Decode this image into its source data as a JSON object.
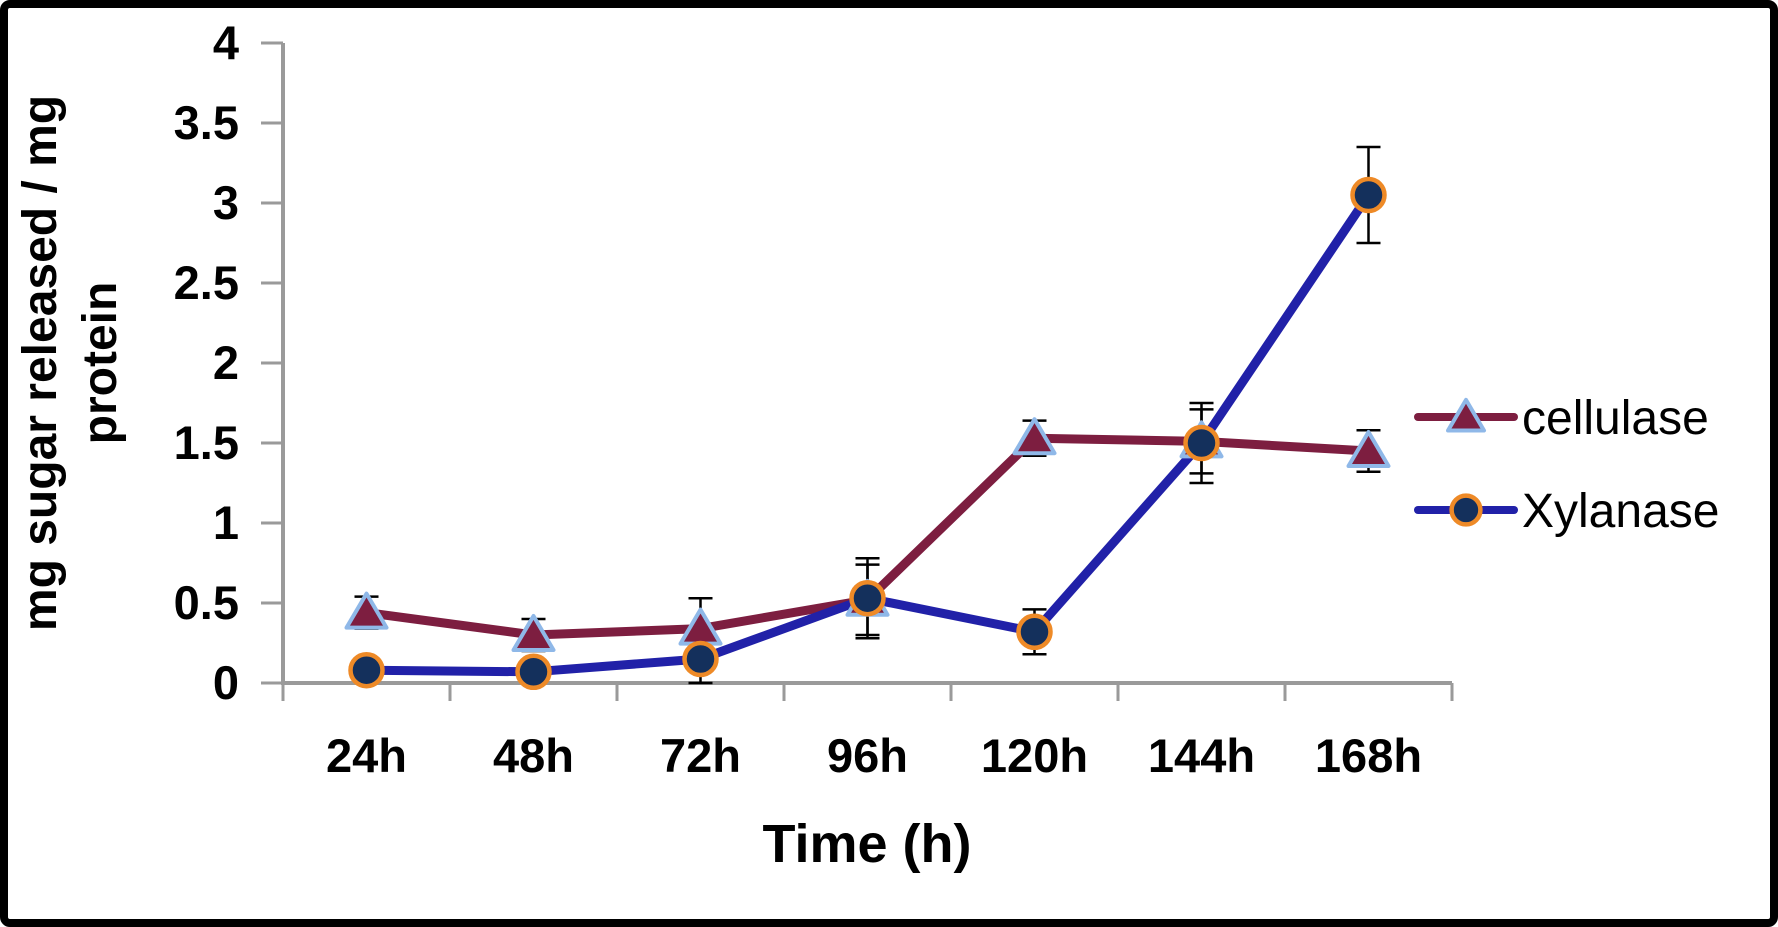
{
  "frame": {
    "background_color": "#ffffff",
    "border_color": "#000000"
  },
  "chart_data": {
    "type": "line",
    "title": "",
    "xlabel": "Time (h)",
    "ylabel": "mg sugar released / mg protein",
    "ylabel_lines": [
      "mg sugar released / mg",
      "protein"
    ],
    "categories": [
      "24h",
      "48h",
      "72h",
      "96h",
      "120h",
      "144h",
      "168h"
    ],
    "ylim": [
      0,
      4
    ],
    "y_ticks": [
      0,
      0.5,
      1,
      1.5,
      2,
      2.5,
      3,
      3.5,
      4
    ],
    "y_tick_labels": [
      "0",
      "0.5",
      "1",
      "1.5",
      "2",
      "2.5",
      "3",
      "3.5",
      "4"
    ],
    "grid": false,
    "legend_position": "right",
    "error_bars": true,
    "axis_color": "#9a9a9a",
    "error_bar_color": "#000000",
    "text_color": "#000000",
    "series": [
      {
        "name": "cellulase",
        "marker": "triangle",
        "line_color": "#7d1e40",
        "marker_fill": "#7d1e40",
        "marker_stroke": "#8fb8e8",
        "values": [
          0.44,
          0.3,
          0.34,
          0.52,
          1.53,
          1.51,
          1.45
        ],
        "errors": [
          0.1,
          0.1,
          0.19,
          0.22,
          0.11,
          0.2,
          0.13
        ]
      },
      {
        "name": "Xylanase",
        "marker": "circle",
        "line_color": "#2121a8",
        "marker_fill": "#14305c",
        "marker_stroke": "#ee8a27",
        "values": [
          0.08,
          0.07,
          0.15,
          0.53,
          0.32,
          1.5,
          3.05
        ],
        "errors": [
          0.06,
          0.05,
          0.15,
          0.25,
          0.14,
          0.25,
          0.3
        ]
      }
    ]
  }
}
